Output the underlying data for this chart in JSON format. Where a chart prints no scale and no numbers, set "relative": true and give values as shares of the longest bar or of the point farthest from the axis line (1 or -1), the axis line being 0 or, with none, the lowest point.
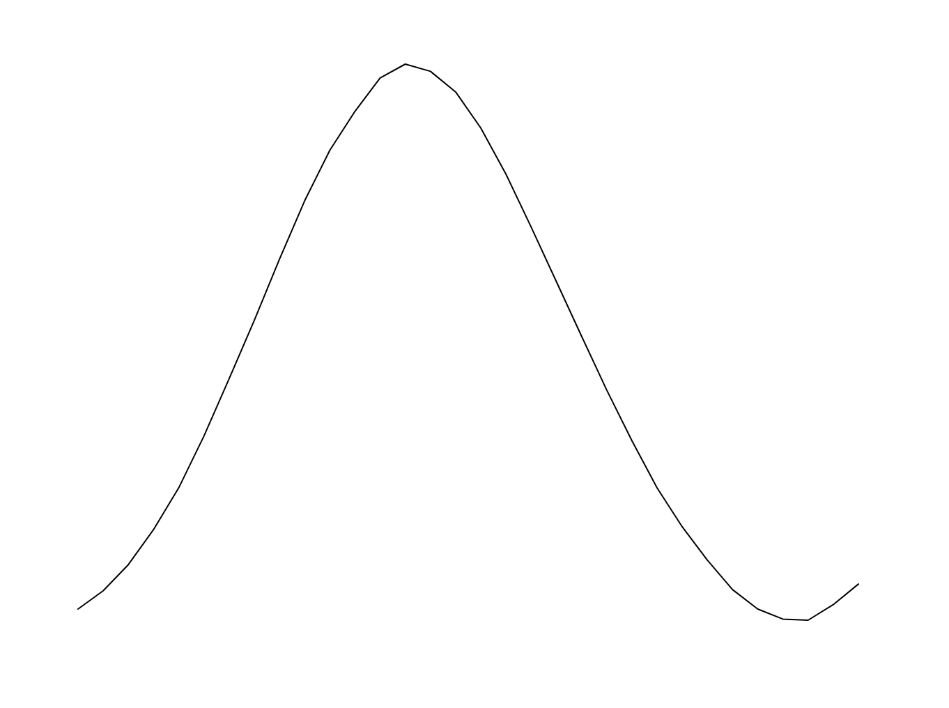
{
  "chart_data": {
    "type": "line",
    "relative": true,
    "categories": [
      null,
      null,
      null,
      null,
      null,
      null,
      null,
      null,
      null,
      null,
      null,
      null,
      null,
      null,
      null,
      null,
      null,
      null,
      null,
      null,
      null,
      null,
      null,
      null,
      null,
      null,
      null,
      null,
      null,
      null,
      null,
      null
    ],
    "values": [
      0.02,
      0.053,
      0.1,
      0.163,
      0.238,
      0.331,
      0.434,
      0.539,
      0.649,
      0.754,
      0.845,
      0.915,
      0.975,
      1,
      0.987,
      0.95,
      0.885,
      0.802,
      0.707,
      0.609,
      0.511,
      0.414,
      0.323,
      0.238,
      0.168,
      0.108,
      0.055,
      0.02,
      0.002,
      0,
      0.028,
      0.065
    ],
    "color": "#000000",
    "marker": "none",
    "line_style": "solid",
    "grid": false
  }
}
